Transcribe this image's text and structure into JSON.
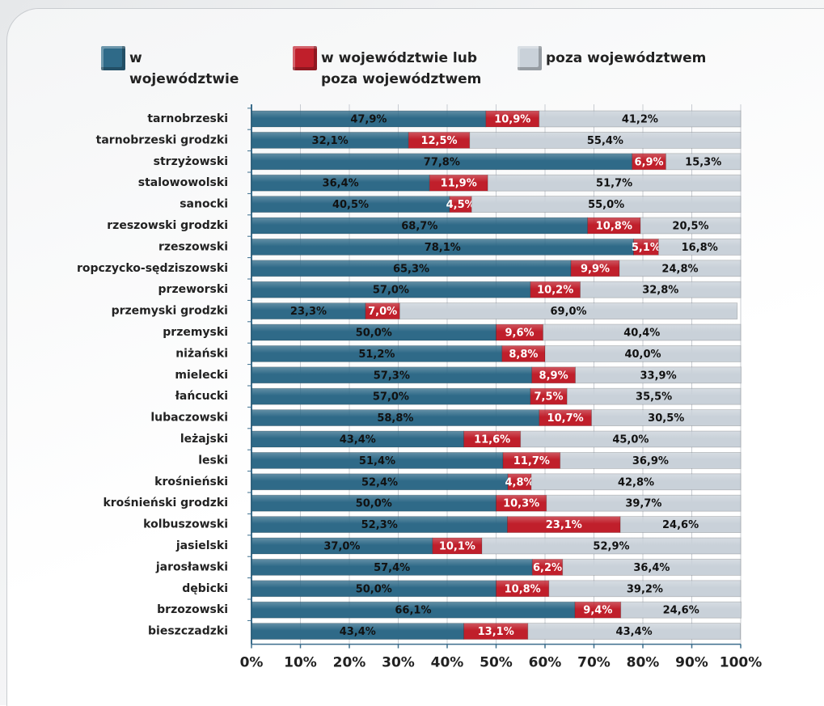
{
  "chart_data": {
    "type": "stacked-bar-horizontal",
    "categories": [
      "tarnobrzeski",
      "tarnobrzeski grodzki",
      "strzyżowski",
      "stalowowolski",
      "sanocki",
      "rzeszowski grodzki",
      "rzeszowski",
      "ropczycko-sędziszowski",
      "przeworski",
      "przemyski grodzki",
      "przemyski",
      "niżański",
      "mielecki",
      "łańcucki",
      "lubaczowski",
      "leżajski",
      "leski",
      "krośnieński",
      "krośnieński grodzki",
      "kolbuszowski",
      "jasielski",
      "jarosławski",
      "dębicki",
      "brzozowski",
      "bieszczadzki"
    ],
    "series": [
      {
        "name": "w województwie",
        "color": "#2f6a88",
        "values": [
          47.9,
          32.1,
          77.8,
          36.4,
          40.5,
          68.7,
          78.1,
          65.3,
          57.0,
          23.3,
          50.0,
          51.2,
          57.3,
          57.0,
          58.8,
          43.4,
          51.4,
          52.4,
          50.0,
          52.3,
          37.0,
          57.4,
          50.0,
          66.1,
          43.4
        ],
        "value_labels": [
          "47,9%",
          "32,1%",
          "77,8%",
          "36,4%",
          "40,5%",
          "68,7%",
          "78,1%",
          "65,3%",
          "57,0%",
          "23,3%",
          "50,0%",
          "51,2%",
          "57,3%",
          "57,0%",
          "58,8%",
          "43,4%",
          "51,4%",
          "52,4%",
          "50,0%",
          "52,3%",
          "37,0%",
          "57,4%",
          "50,0%",
          "66,1%",
          "43,4%"
        ]
      },
      {
        "name": "w województwie lub poza województwem",
        "color": "#c01f2b",
        "values": [
          10.9,
          12.5,
          6.9,
          11.9,
          4.5,
          10.8,
          5.1,
          9.9,
          10.2,
          7.0,
          9.6,
          8.8,
          8.9,
          7.5,
          10.7,
          11.6,
          11.7,
          4.8,
          10.3,
          23.1,
          10.1,
          6.2,
          10.8,
          9.4,
          13.1
        ],
        "value_labels": [
          "10,9%",
          "12,5%",
          "6,9%",
          "11,9%",
          "4,5%",
          "10,8%",
          "5,1%",
          "9,9%",
          "10,2%",
          "7,0%",
          "9,6%",
          "8,8%",
          "8,9%",
          "7,5%",
          "10,7%",
          "11,6%",
          "11,7%",
          "4,8%",
          "10,3%",
          "23,1%",
          "10,1%",
          "6,2%",
          "10,8%",
          "9,4%",
          "13,1%"
        ]
      },
      {
        "name": "poza województwem",
        "color": "#c9d1d9",
        "values": [
          41.2,
          55.4,
          15.3,
          51.7,
          55.0,
          20.5,
          16.8,
          24.8,
          32.8,
          69.0,
          40.4,
          40.0,
          33.9,
          35.5,
          30.5,
          45.0,
          36.9,
          42.8,
          39.7,
          24.6,
          52.9,
          36.4,
          39.2,
          24.6,
          43.4
        ],
        "value_labels": [
          "41,2%",
          "55,4%",
          "15,3%",
          "51,7%",
          "55,0%",
          "20,5%",
          "16,8%",
          "24,8%",
          "32,8%",
          "69,0%",
          "40,4%",
          "40,0%",
          "33,9%",
          "35,5%",
          "30,5%",
          "45,0%",
          "36,9%",
          "42,8%",
          "39,7%",
          "24,6%",
          "52,9%",
          "36,4%",
          "39,2%",
          "24,6%",
          "43,4%"
        ]
      }
    ],
    "xlim": [
      0,
      100
    ],
    "xticks": [
      {
        "value": 0,
        "label": "0%"
      },
      {
        "value": 10,
        "label": "10%"
      },
      {
        "value": 20,
        "label": "20%"
      },
      {
        "value": 30,
        "label": "30%"
      },
      {
        "value": 40,
        "label": "40%"
      },
      {
        "value": 50,
        "label": "50%"
      },
      {
        "value": 60,
        "label": "60%"
      },
      {
        "value": 70,
        "label": "70%"
      },
      {
        "value": 80,
        "label": "80%"
      },
      {
        "value": 90,
        "label": "90%"
      },
      {
        "value": 100,
        "label": "100%"
      }
    ],
    "grid": true
  }
}
